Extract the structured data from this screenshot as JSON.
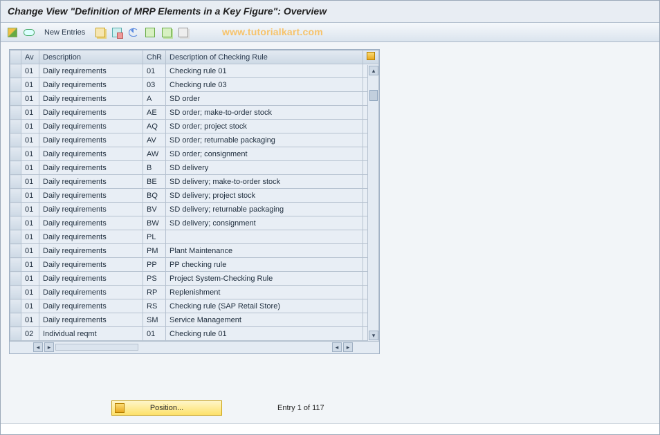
{
  "title": "Change View \"Definition of MRP Elements in a Key Figure\": Overview",
  "watermark": "www.tutorialkart.com",
  "toolbar": {
    "new_entries": "New Entries"
  },
  "columns": {
    "av": "Av",
    "description": "Description",
    "chr": "ChR",
    "chr_description": "Description of Checking Rule"
  },
  "rows": [
    {
      "av": "01",
      "desc": "Daily requirements",
      "chr": "01",
      "cdesc": "Checking rule 01"
    },
    {
      "av": "01",
      "desc": "Daily requirements",
      "chr": "03",
      "cdesc": "Checking rule 03"
    },
    {
      "av": "01",
      "desc": "Daily requirements",
      "chr": "A",
      "cdesc": "SD order"
    },
    {
      "av": "01",
      "desc": "Daily requirements",
      "chr": "AE",
      "cdesc": "SD order; make-to-order stock"
    },
    {
      "av": "01",
      "desc": "Daily requirements",
      "chr": "AQ",
      "cdesc": "SD order; project stock"
    },
    {
      "av": "01",
      "desc": "Daily requirements",
      "chr": "AV",
      "cdesc": "SD order; returnable packaging"
    },
    {
      "av": "01",
      "desc": "Daily requirements",
      "chr": "AW",
      "cdesc": "SD order; consignment"
    },
    {
      "av": "01",
      "desc": "Daily requirements",
      "chr": "B",
      "cdesc": "SD delivery"
    },
    {
      "av": "01",
      "desc": "Daily requirements",
      "chr": "BE",
      "cdesc": "SD delivery; make-to-order stock"
    },
    {
      "av": "01",
      "desc": "Daily requirements",
      "chr": "BQ",
      "cdesc": "SD delivery; project stock"
    },
    {
      "av": "01",
      "desc": "Daily requirements",
      "chr": "BV",
      "cdesc": "SD delivery; returnable packaging"
    },
    {
      "av": "01",
      "desc": "Daily requirements",
      "chr": "BW",
      "cdesc": "SD delivery; consignment"
    },
    {
      "av": "01",
      "desc": "Daily requirements",
      "chr": "PL",
      "cdesc": ""
    },
    {
      "av": "01",
      "desc": "Daily requirements",
      "chr": "PM",
      "cdesc": "Plant Maintenance"
    },
    {
      "av": "01",
      "desc": "Daily requirements",
      "chr": "PP",
      "cdesc": "PP checking rule"
    },
    {
      "av": "01",
      "desc": "Daily requirements",
      "chr": "PS",
      "cdesc": "Project System-Checking Rule"
    },
    {
      "av": "01",
      "desc": "Daily requirements",
      "chr": "RP",
      "cdesc": "Replenishment"
    },
    {
      "av": "01",
      "desc": "Daily requirements",
      "chr": "RS",
      "cdesc": "Checking rule (SAP Retail Store)"
    },
    {
      "av": "01",
      "desc": "Daily requirements",
      "chr": "SM",
      "cdesc": "Service Management"
    },
    {
      "av": "02",
      "desc": "Individual reqmt",
      "chr": "01",
      "cdesc": "Checking rule 01"
    }
  ],
  "footer": {
    "position_button": "Position...",
    "entry_text": "Entry 1 of 117"
  },
  "colors": {
    "header_bg": "#e8edf3",
    "grid_border": "#b5c1cf",
    "accent_yellow": "#fde16b"
  }
}
